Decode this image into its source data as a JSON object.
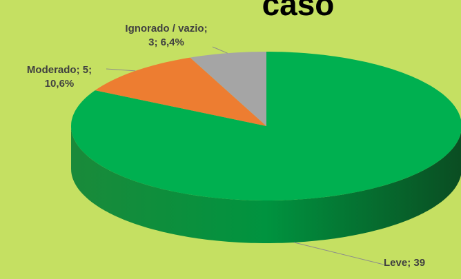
{
  "chart_data": {
    "type": "pie3d",
    "title": "caso",
    "categories": [
      "Leve",
      "Moderado",
      "Ignorado / vazio"
    ],
    "values": [
      39,
      5,
      3
    ],
    "value_labels": [
      "Leve; 39",
      "Moderado; 5; 10,6%",
      "Ignorado / vazio; 3; 6,4%"
    ],
    "colors": [
      "#00b050",
      "#ed7d31",
      "#a5a5a5"
    ]
  }
}
